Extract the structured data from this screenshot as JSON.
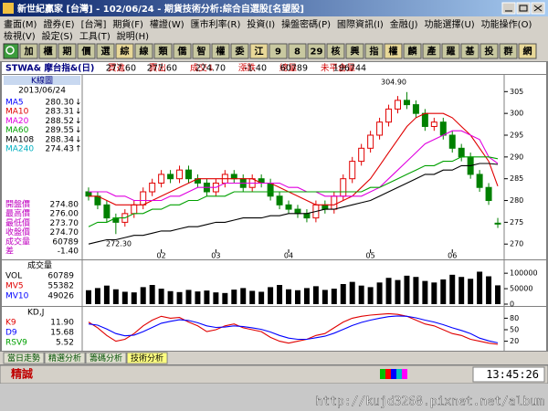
{
  "window": {
    "title": "新世紀贏家 [台灣] - 102/06/24 - 期貨技術分析:綜合自選股[名望股]"
  },
  "menu": {
    "row1": [
      "畫面(M)",
      "證券(E)",
      "[台灣]",
      "期貨(F)",
      "權證(W)",
      "匯市利率(R)",
      "投資(I)",
      "操盤密碼(P)",
      "國際資訊(I)",
      "金融(J)",
      "功能選擇(U)",
      "功能操作(O)"
    ],
    "row2": [
      "檢視(V)",
      "設定(S)",
      "工具(T)",
      "說明(H)"
    ]
  },
  "toolbar": [
    "加",
    "櫃",
    "期",
    "價",
    "選",
    "綜",
    "線",
    "類",
    "僑",
    "智",
    "權",
    "委",
    "江",
    "9",
    "8",
    "29",
    "核",
    "興",
    "指",
    "權",
    "麟",
    "產",
    "羅",
    "基",
    "投",
    "群",
    "網"
  ],
  "quote": {
    "symbol": "STWA& 摩台指&(日)",
    "fields": [
      {
        "label": "買進",
        "value": "277.60"
      },
      {
        "label": "賣出",
        "value": "277.60"
      },
      {
        "label": "成交↓",
        "value": "274.70"
      },
      {
        "label": "漲跌",
        "value": "-1.40"
      },
      {
        "label": "總量",
        "value": "60789"
      },
      {
        "label": "未平倉量",
        "value": "196744"
      }
    ]
  },
  "chart_data": [
    {
      "type": "candlestick",
      "title": "K線圖",
      "date": "2013/06/24",
      "legend": [
        {
          "label": "MA5",
          "value": "280.30",
          "arrow": "↓",
          "color": "#0000ff"
        },
        {
          "label": "MA10",
          "value": "283.31",
          "arrow": "↓",
          "color": "#e00000"
        },
        {
          "label": "MA20",
          "value": "288.52",
          "arrow": "↓",
          "color": "#e000e0"
        },
        {
          "label": "MA60",
          "value": "289.55",
          "arrow": "↓",
          "color": "#00a000"
        },
        {
          "label": "MA108",
          "value": "288.34",
          "arrow": "↓",
          "color": "#000000"
        },
        {
          "label": "MA240",
          "value": "274.43",
          "arrow": "↑",
          "color": "#00b0c0"
        }
      ],
      "prices": [
        {
          "label": "開盤價",
          "value": "274.80"
        },
        {
          "label": "最高價",
          "value": "276.00"
        },
        {
          "label": "最低價",
          "value": "273.70"
        },
        {
          "label": "收盤價",
          "value": "274.70"
        },
        {
          "label": "成交量",
          "value": "60789"
        },
        {
          "label": "差",
          "value": "-1.40"
        }
      ],
      "open": [
        282,
        281,
        279,
        276,
        275,
        277,
        279,
        282,
        284,
        286,
        285,
        287,
        285,
        284,
        282,
        284,
        286,
        285,
        283,
        285,
        284,
        281,
        279,
        278,
        277,
        276,
        279,
        278,
        281,
        285,
        289,
        292,
        295,
        298,
        301,
        303,
        302,
        300,
        297,
        298,
        295,
        292,
        290,
        286,
        283,
        274.8
      ],
      "high": [
        283,
        282,
        280,
        277,
        278,
        280,
        283,
        285,
        287,
        287,
        288,
        288,
        286,
        285,
        285,
        287,
        287,
        286,
        286,
        286,
        285,
        282,
        280,
        279,
        278,
        280,
        280,
        282,
        286,
        290,
        293,
        296,
        299,
        302,
        304,
        304.9,
        303,
        301,
        299,
        299,
        296,
        293,
        291,
        287,
        284,
        276
      ],
      "low": [
        280,
        278,
        275,
        272.3,
        274,
        276,
        278,
        281,
        283,
        284,
        284,
        284,
        283,
        281,
        281,
        283,
        284,
        282,
        282,
        283,
        280,
        278,
        277,
        276,
        275,
        275,
        277,
        277,
        280,
        284,
        288,
        291,
        294,
        297,
        300,
        301,
        299,
        296,
        296,
        294,
        291,
        289,
        285,
        282,
        279,
        273.7
      ],
      "close": [
        281,
        279,
        276,
        275,
        277,
        279,
        282,
        284,
        286,
        285,
        287,
        285,
        284,
        282,
        284,
        286,
        285,
        283,
        285,
        284,
        281,
        279,
        278,
        277,
        276,
        279,
        278,
        281,
        285,
        289,
        292,
        295,
        298,
        301,
        303,
        302,
        300,
        297,
        298,
        295,
        292,
        290,
        286,
        283,
        280,
        274.7
      ],
      "up_color": "#e00000",
      "down_color": "#008000",
      "series": [
        {
          "name": "MA10",
          "color": "#e00000",
          "values": [
            281,
            281,
            280,
            279,
            279,
            279,
            279,
            280,
            281,
            282,
            283,
            284,
            285,
            285,
            285,
            285,
            285,
            285,
            285,
            284,
            284,
            283,
            282,
            281,
            280,
            279,
            279,
            279,
            280,
            281,
            283,
            285,
            288,
            291,
            294,
            297,
            299,
            300,
            300,
            300,
            299,
            297,
            295,
            292,
            289,
            283.3
          ]
        },
        {
          "name": "MA20",
          "color": "#e000e0",
          "values": [
            282,
            282,
            282,
            281,
            281,
            280,
            280,
            280,
            280,
            281,
            281,
            282,
            283,
            283,
            283,
            284,
            284,
            284,
            284,
            284,
            284,
            284,
            283,
            283,
            282,
            282,
            281,
            281,
            281,
            281,
            281,
            282,
            283,
            285,
            287,
            289,
            291,
            293,
            294,
            295,
            296,
            296,
            295,
            294,
            290,
            288.5
          ]
        },
        {
          "name": "MA60",
          "color": "#00a000",
          "values": [
            274,
            275,
            275,
            276,
            276,
            277,
            277,
            278,
            278,
            279,
            279,
            280,
            280,
            281,
            281,
            281,
            282,
            282,
            282,
            282,
            282,
            282,
            282,
            282,
            282,
            282,
            282,
            282,
            282,
            282,
            282,
            283,
            283,
            284,
            285,
            286,
            287,
            288,
            288,
            289,
            289,
            290,
            290,
            290,
            290,
            289.6
          ]
        },
        {
          "name": "MA108",
          "color": "#000000",
          "values": [
            270,
            270.5,
            271,
            271,
            271.5,
            272,
            272,
            272.5,
            273,
            273,
            273.5,
            274,
            274,
            274.5,
            275,
            275,
            275.5,
            276,
            276,
            276,
            276.5,
            276.5,
            277,
            277,
            277,
            277.5,
            278,
            278,
            278.5,
            279,
            279.5,
            280,
            281,
            282,
            283,
            284,
            285,
            286,
            286,
            287,
            287,
            288,
            288,
            288.5,
            288.5,
            288.3
          ]
        }
      ],
      "annotations": [
        "304.90",
        "272.30"
      ],
      "xlim": [
        -0.5,
        45.5
      ],
      "xticks": [
        {
          "value": 8,
          "label": "02"
        },
        {
          "value": 14,
          "label": "03"
        },
        {
          "value": 22,
          "label": "04"
        },
        {
          "value": 31,
          "label": "05"
        },
        {
          "value": 40,
          "label": "06"
        }
      ],
      "ylim": [
        269,
        308
      ],
      "yticks": [
        270,
        275,
        280,
        285,
        290,
        295,
        300,
        305
      ]
    },
    {
      "type": "bar",
      "title": "成交量",
      "legend": [
        {
          "label": "VOL",
          "value": "60789",
          "color": "#000000"
        },
        {
          "label": "MV5",
          "value": "55382",
          "color": "#e00000"
        },
        {
          "label": "MV10",
          "value": "49026",
          "color": "#0000ff"
        }
      ],
      "color": "#000000",
      "values": [
        45000,
        52000,
        60000,
        48000,
        40000,
        38000,
        55000,
        62000,
        50000,
        42000,
        39000,
        46000,
        41000,
        44000,
        38000,
        36000,
        47000,
        52000,
        43000,
        40000,
        55000,
        62000,
        48000,
        45000,
        52000,
        58000,
        46000,
        50000,
        65000,
        72000,
        60000,
        55000,
        70000,
        85000,
        78000,
        92000,
        88000,
        75000,
        70000,
        80000,
        95000,
        88000,
        82000,
        105000,
        90000,
        60789
      ],
      "xlim": [
        -0.5,
        45.5
      ],
      "ylim": [
        0,
        130000
      ],
      "yticks": [
        0,
        50000,
        100000
      ]
    },
    {
      "type": "line",
      "title": "KD,J",
      "legend": [
        {
          "label": "K9",
          "value": "11.90",
          "color": "#e00000"
        },
        {
          "label": "D9",
          "value": "15.68",
          "color": "#0000ff"
        },
        {
          "label": "RSV9",
          "value": "5.52",
          "color": "#00a000"
        }
      ],
      "series": [
        {
          "name": "K9",
          "color": "#e00000",
          "values": [
            70,
            55,
            35,
            20,
            25,
            40,
            60,
            75,
            85,
            80,
            82,
            70,
            60,
            45,
            50,
            60,
            65,
            55,
            50,
            45,
            30,
            20,
            15,
            20,
            25,
            35,
            40,
            55,
            70,
            80,
            85,
            88,
            90,
            92,
            90,
            85,
            75,
            65,
            60,
            50,
            40,
            35,
            25,
            20,
            15,
            11.9
          ]
        },
        {
          "name": "D9",
          "color": "#0000ff",
          "values": [
            65,
            62,
            52,
            40,
            34,
            36,
            45,
            56,
            67,
            72,
            76,
            74,
            68,
            60,
            56,
            57,
            60,
            58,
            55,
            51,
            44,
            35,
            28,
            25,
            25,
            29,
            33,
            41,
            51,
            61,
            69,
            75,
            80,
            84,
            86,
            85,
            81,
            75,
            70,
            63,
            55,
            48,
            40,
            28,
            21,
            15.68
          ]
        }
      ],
      "xlim": [
        -0.5,
        45.5
      ],
      "ylim": [
        0,
        100
      ],
      "yticks": [
        20,
        50,
        80
      ]
    }
  ],
  "tabs": [
    "當日走勢",
    "精選分析",
    "籌碼分析",
    "技術分析"
  ],
  "status": {
    "brand": "精誠",
    "time": "13:45:26"
  },
  "watermark": "http://kujd3268.pixnet.net/album"
}
